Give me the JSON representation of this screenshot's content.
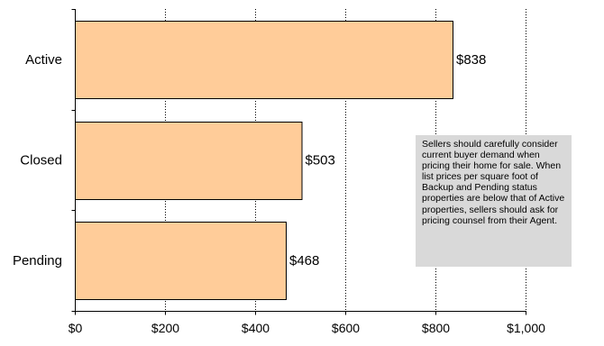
{
  "chart_data": {
    "type": "bar",
    "orientation": "horizontal",
    "categories": [
      "Active",
      "Closed",
      "Pending"
    ],
    "values": [
      838,
      503,
      468
    ],
    "data_labels": [
      "$838",
      "$503",
      "$468"
    ],
    "x_ticks": [
      0,
      200,
      400,
      600,
      800,
      1000
    ],
    "x_tick_labels": [
      "$0",
      "$200",
      "$400",
      "$600",
      "$800",
      "$1,000"
    ],
    "xlim": [
      0,
      1000
    ],
    "grid": "vertical dotted",
    "bar_color": "#ffcc99",
    "bar_edge_color": "#000000"
  },
  "annotation": {
    "text": "Sellers should carefully consider current buyer demand when pricing their home for sale. When list prices per square foot of Backup and Pending status properties are below that of Active properties, sellers should ask for pricing counsel from their Agent."
  }
}
